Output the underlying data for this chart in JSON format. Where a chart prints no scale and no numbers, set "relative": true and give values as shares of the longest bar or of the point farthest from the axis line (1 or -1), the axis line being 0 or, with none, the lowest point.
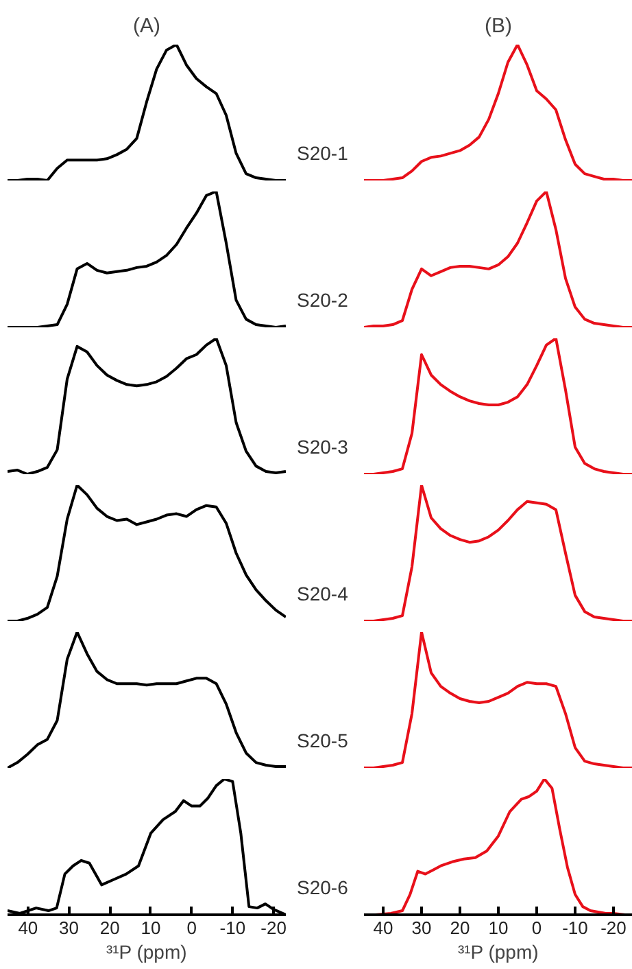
{
  "chart_data": [
    {
      "type": "line",
      "relative": true,
      "title": "(A)",
      "color": "#000000",
      "tick_labels": false,
      "grid": false,
      "categories": [
        null,
        null,
        null,
        null,
        null,
        null,
        null,
        null,
        null,
        null,
        null,
        null,
        null,
        null,
        null,
        null,
        null,
        null,
        null,
        null,
        null,
        null,
        null,
        null,
        null,
        null,
        null,
        null,
        null
      ],
      "values": [
        0,
        0,
        0.01,
        0.01,
        0,
        0.09,
        0.15,
        0.15,
        0.15,
        0.15,
        0.16,
        0.19,
        0.23,
        0.31,
        0.58,
        0.82,
        0.96,
        1,
        0.85,
        0.75,
        0.69,
        0.64,
        0.48,
        0.2,
        0.05,
        0.02,
        0.01,
        0,
        0
      ]
    },
    {
      "type": "line",
      "relative": true,
      "title": "(B)",
      "color": "#e8101a",
      "tick_labels": false,
      "grid": false,
      "annotations": [
        "S20-1"
      ],
      "categories": [
        null,
        null,
        null,
        null,
        null,
        null,
        null,
        null,
        null,
        null,
        null,
        null,
        null,
        null,
        null,
        null,
        null,
        null,
        null,
        null,
        null,
        null,
        null,
        null,
        null,
        null,
        null,
        null,
        null
      ],
      "values": [
        0,
        0,
        0,
        0.01,
        0.02,
        0.07,
        0.14,
        0.17,
        0.18,
        0.2,
        0.22,
        0.26,
        0.32,
        0.45,
        0.64,
        0.87,
        1,
        0.85,
        0.66,
        0.6,
        0.52,
        0.3,
        0.12,
        0.05,
        0.03,
        0.01,
        0.01,
        0,
        0
      ]
    },
    {
      "type": "line",
      "relative": true,
      "color": "#000000",
      "tick_labels": false,
      "grid": false,
      "categories": [
        null,
        null,
        null,
        null,
        null,
        null,
        null,
        null,
        null,
        null,
        null,
        null,
        null,
        null,
        null,
        null,
        null,
        null,
        null,
        null,
        null,
        null,
        null,
        null,
        null,
        null,
        null,
        null,
        null
      ],
      "values": [
        0,
        0,
        0,
        0,
        0.01,
        0.02,
        0.17,
        0.43,
        0.47,
        0.42,
        0.4,
        0.41,
        0.42,
        0.44,
        0.45,
        0.48,
        0.53,
        0.61,
        0.73,
        0.84,
        0.97,
        1,
        0.62,
        0.2,
        0.06,
        0.02,
        0.01,
        0,
        0.01
      ]
    },
    {
      "type": "line",
      "relative": true,
      "color": "#e8101a",
      "tick_labels": false,
      "grid": false,
      "annotations": [
        "S20-2"
      ],
      "categories": [
        null,
        null,
        null,
        null,
        null,
        null,
        null,
        null,
        null,
        null,
        null,
        null,
        null,
        null,
        null,
        null,
        null,
        null,
        null,
        null,
        null,
        null,
        null,
        null,
        null,
        null,
        null,
        null,
        null
      ],
      "values": [
        0,
        0.01,
        0.01,
        0.02,
        0.05,
        0.28,
        0.43,
        0.38,
        0.41,
        0.44,
        0.45,
        0.45,
        0.44,
        0.43,
        0.46,
        0.52,
        0.62,
        0.77,
        0.93,
        1,
        0.72,
        0.36,
        0.15,
        0.06,
        0.03,
        0.02,
        0.01,
        0,
        0
      ]
    },
    {
      "type": "line",
      "relative": true,
      "color": "#000000",
      "tick_labels": false,
      "grid": false,
      "categories": [
        null,
        null,
        null,
        null,
        null,
        null,
        null,
        null,
        null,
        null,
        null,
        null,
        null,
        null,
        null,
        null,
        null,
        null,
        null,
        null,
        null,
        null,
        null,
        null,
        null,
        null,
        null,
        null,
        null
      ],
      "values": [
        0.02,
        0.03,
        0,
        0.02,
        0.05,
        0.18,
        0.7,
        0.94,
        0.9,
        0.8,
        0.73,
        0.69,
        0.66,
        0.65,
        0.66,
        0.68,
        0.72,
        0.78,
        0.85,
        0.88,
        0.95,
        1,
        0.8,
        0.38,
        0.17,
        0.06,
        0.02,
        0.01,
        0.02
      ]
    },
    {
      "type": "line",
      "relative": true,
      "color": "#e8101a",
      "tick_labels": false,
      "grid": false,
      "annotations": [
        "S20-3"
      ],
      "categories": [
        null,
        null,
        null,
        null,
        null,
        null,
        null,
        null,
        null,
        null,
        null,
        null,
        null,
        null,
        null,
        null,
        null,
        null,
        null,
        null,
        null,
        null,
        null,
        null,
        null,
        null,
        null,
        null,
        null
      ],
      "values": [
        0,
        0,
        0.01,
        0.02,
        0.04,
        0.3,
        0.88,
        0.73,
        0.66,
        0.61,
        0.57,
        0.54,
        0.52,
        0.51,
        0.51,
        0.53,
        0.57,
        0.66,
        0.8,
        0.95,
        1,
        0.62,
        0.2,
        0.08,
        0.04,
        0.02,
        0.01,
        0,
        0
      ]
    },
    {
      "type": "line",
      "relative": true,
      "color": "#000000",
      "tick_labels": false,
      "grid": false,
      "categories": [
        null,
        null,
        null,
        null,
        null,
        null,
        null,
        null,
        null,
        null,
        null,
        null,
        null,
        null,
        null,
        null,
        null,
        null,
        null,
        null,
        null,
        null,
        null,
        null,
        null,
        null,
        null,
        null,
        null
      ],
      "values": [
        0,
        0,
        0.02,
        0.05,
        0.1,
        0.33,
        0.75,
        1,
        0.93,
        0.83,
        0.77,
        0.74,
        0.75,
        0.71,
        0.73,
        0.75,
        0.78,
        0.79,
        0.77,
        0.82,
        0.85,
        0.84,
        0.72,
        0.5,
        0.34,
        0.23,
        0.15,
        0.08,
        0.03
      ]
    },
    {
      "type": "line",
      "relative": true,
      "color": "#e8101a",
      "tick_labels": false,
      "grid": false,
      "annotations": [
        "S20-4"
      ],
      "categories": [
        null,
        null,
        null,
        null,
        null,
        null,
        null,
        null,
        null,
        null,
        null,
        null,
        null,
        null,
        null,
        null,
        null,
        null,
        null,
        null,
        null,
        null,
        null,
        null,
        null,
        null,
        null,
        null,
        null
      ],
      "values": [
        0,
        0,
        0.01,
        0.02,
        0.04,
        0.4,
        1,
        0.76,
        0.68,
        0.63,
        0.6,
        0.58,
        0.59,
        0.62,
        0.67,
        0.74,
        0.82,
        0.88,
        0.87,
        0.86,
        0.82,
        0.5,
        0.19,
        0.07,
        0.03,
        0.02,
        0.01,
        0,
        0
      ]
    },
    {
      "type": "line",
      "relative": true,
      "color": "#000000",
      "tick_labels": false,
      "grid": false,
      "categories": [
        null,
        null,
        null,
        null,
        null,
        null,
        null,
        null,
        null,
        null,
        null,
        null,
        null,
        null,
        null,
        null,
        null,
        null,
        null,
        null,
        null,
        null,
        null,
        null,
        null,
        null,
        null,
        null,
        null
      ],
      "values": [
        0,
        0.04,
        0.1,
        0.17,
        0.21,
        0.35,
        0.8,
        1,
        0.84,
        0.71,
        0.65,
        0.62,
        0.62,
        0.62,
        0.61,
        0.62,
        0.62,
        0.62,
        0.64,
        0.66,
        0.66,
        0.62,
        0.47,
        0.26,
        0.11,
        0.04,
        0.02,
        0.01,
        0.01
      ]
    },
    {
      "type": "line",
      "relative": true,
      "color": "#e8101a",
      "tick_labels": false,
      "grid": false,
      "annotations": [
        "S20-5"
      ],
      "categories": [
        null,
        null,
        null,
        null,
        null,
        null,
        null,
        null,
        null,
        null,
        null,
        null,
        null,
        null,
        null,
        null,
        null,
        null,
        null,
        null,
        null,
        null,
        null,
        null,
        null,
        null,
        null,
        null,
        null
      ],
      "values": [
        0,
        0,
        0.01,
        0.02,
        0.04,
        0.4,
        1,
        0.7,
        0.6,
        0.55,
        0.51,
        0.49,
        0.48,
        0.49,
        0.52,
        0.55,
        0.6,
        0.63,
        0.62,
        0.62,
        0.6,
        0.4,
        0.15,
        0.05,
        0.03,
        0.02,
        0.01,
        0,
        0
      ]
    },
    {
      "type": "line",
      "relative": true,
      "color": "#000000",
      "xlim": [
        45,
        -23
      ],
      "tick_labels": "x",
      "grid": false,
      "xlabel": "³¹P (ppm)",
      "xticks": [
        40,
        30,
        20,
        10,
        0,
        -10,
        -20
      ],
      "x": [
        45,
        42,
        38,
        35,
        33,
        31,
        29,
        27,
        25,
        22,
        19,
        16,
        13,
        10,
        7,
        4,
        2,
        0,
        -2,
        -4,
        -6,
        -8,
        -10,
        -12,
        -14,
        -16,
        -18,
        -20,
        -23
      ],
      "values": [
        0.03,
        0.01,
        0.05,
        0.03,
        0.05,
        0.3,
        0.36,
        0.4,
        0.38,
        0.22,
        0.26,
        0.3,
        0.36,
        0.6,
        0.7,
        0.76,
        0.84,
        0.8,
        0.8,
        0.86,
        0.95,
        1,
        0.98,
        0.6,
        0.06,
        0.05,
        0.08,
        0.04,
        0
      ]
    },
    {
      "type": "line",
      "relative": true,
      "color": "#e8101a",
      "xlim": [
        45,
        -25
      ],
      "tick_labels": "x",
      "grid": false,
      "xlabel": "³¹P (ppm)",
      "xticks": [
        40,
        30,
        20,
        10,
        0,
        -10,
        -20
      ],
      "annotations": [
        "S20-6"
      ],
      "x": [
        45,
        42,
        38,
        35,
        33,
        31,
        29,
        27,
        25,
        22,
        19,
        16,
        13,
        10,
        7,
        4,
        2,
        0,
        -2,
        -4,
        -6,
        -8,
        -10,
        -12,
        -14,
        -16,
        -18,
        -20,
        -23,
        -25
      ],
      "values": [
        0,
        0,
        0.01,
        0.03,
        0.15,
        0.32,
        0.3,
        0.33,
        0.36,
        0.39,
        0.41,
        0.42,
        0.47,
        0.58,
        0.76,
        0.85,
        0.87,
        0.91,
        1,
        0.93,
        0.63,
        0.35,
        0.15,
        0.06,
        0.03,
        0.02,
        0.01,
        0.01,
        0,
        0
      ]
    }
  ]
}
